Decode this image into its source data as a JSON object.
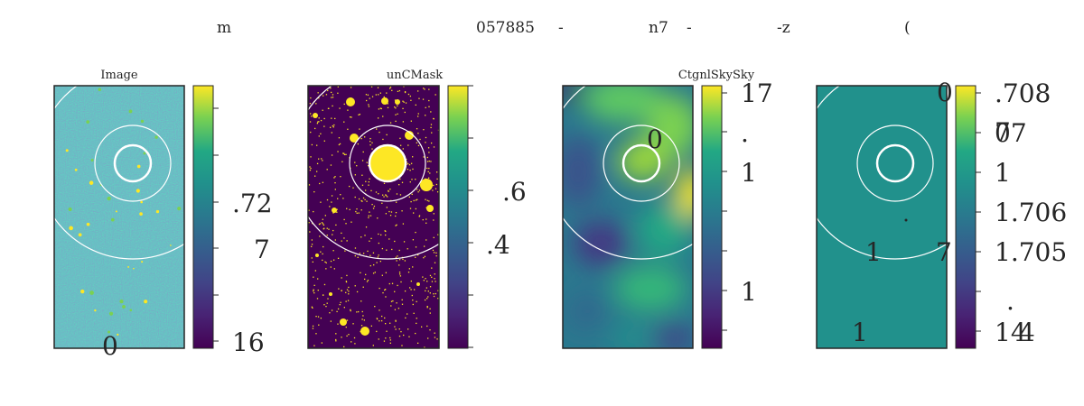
{
  "figure": {
    "suptitle_parts": [
      "m",
      "057885",
      "-",
      "n7",
      "-",
      "-z",
      "("
    ]
  },
  "colors": {
    "viridis_low": "#440154",
    "viridis_mid": "#21918c",
    "viridis_high": "#fde725",
    "annulus": "#ffffff",
    "frame": "#262626"
  },
  "panels": [
    {
      "title": "Image",
      "kind": "noise",
      "colorbar_ticks": [
        ".72",
        "7",
        "16"
      ],
      "overlay_labels": [
        "0"
      ]
    },
    {
      "title": "unCMask",
      "kind": "mask",
      "colorbar_ticks": [
        ".6",
        ".4"
      ],
      "overlay_labels": []
    },
    {
      "title": "CtgnlSkySky",
      "kind": "smooth",
      "colorbar_ticks": [
        "17",
        ".",
        "1",
        "1"
      ],
      "overlay_labels": [
        "0"
      ]
    },
    {
      "title": "",
      "kind": "flat",
      "colorbar_ticks": [
        ".708",
        "07",
        "1",
        "1.706",
        "1.705",
        ".",
        "14"
      ],
      "overlay_labels": [
        "0",
        "7",
        "1",
        "7",
        "1",
        "4"
      ]
    }
  ],
  "chart_data": {
    "type": "heatmap",
    "panels": [
      {
        "title": "Image",
        "description_values": "noisy image with sparse bright sources",
        "colorbar_ticks": [
          ".72",
          "7",
          "16"
        ]
      },
      {
        "title": "unCMask",
        "description_values": "binary source mask",
        "colorbar_ticks": [
          ".6",
          ".4"
        ]
      },
      {
        "title": "CtgnlSkySky",
        "description_values": "smooth sky background",
        "colorbar_ticks": [
          "17",
          ".",
          "1",
          "1"
        ]
      },
      {
        "title": "",
        "description_values": "constant field",
        "colorbar_ticks": [
          ".708",
          "07",
          "1",
          "1.706",
          "1.705",
          ".",
          "14"
        ]
      }
    ],
    "colormap": "viridis"
  }
}
